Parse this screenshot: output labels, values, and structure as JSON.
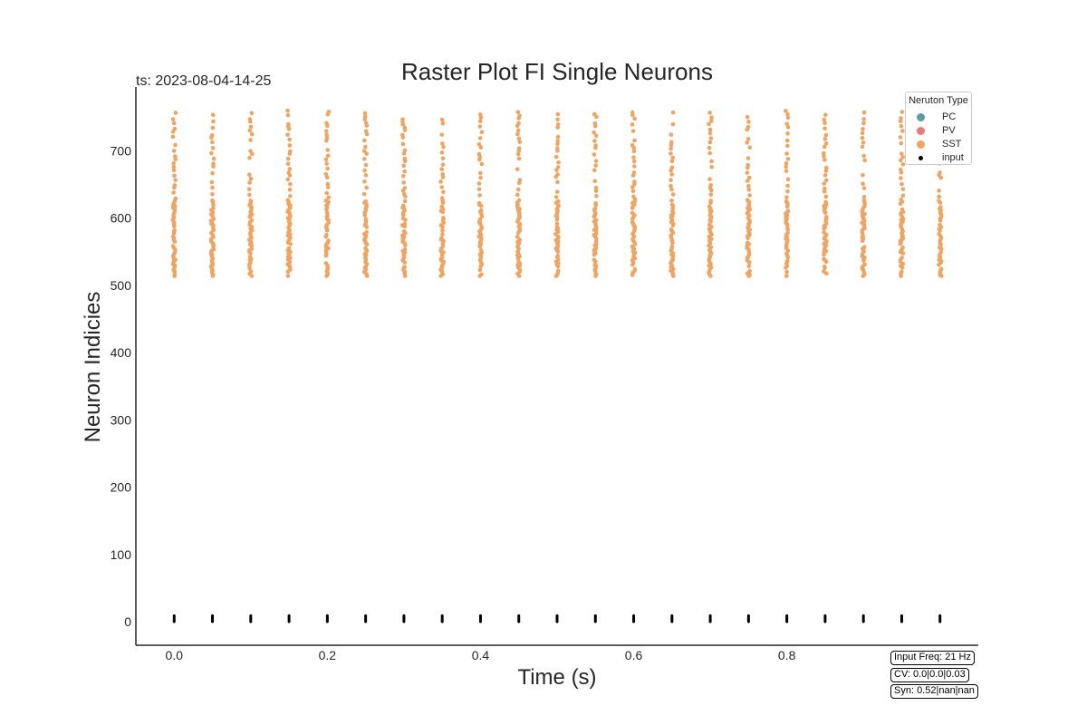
{
  "chart_data": {
    "type": "scatter",
    "title": "Raster Plot FI Single Neurons",
    "timestamp_label": "ts: 2023-08-04-14-25",
    "xlabel": "Time (s)",
    "ylabel": "Neuron Indicies",
    "xlim": [
      -0.05,
      1.05
    ],
    "ylim": [
      -35,
      795
    ],
    "xticks": [
      0.0,
      0.2,
      0.4,
      0.6,
      0.8
    ],
    "xtick_labels": [
      "0.0",
      "0.2",
      "0.4",
      "0.6",
      "0.8"
    ],
    "yticks": [
      0,
      100,
      200,
      300,
      400,
      500,
      600,
      700
    ],
    "ytick_labels": [
      "0",
      "100",
      "200",
      "300",
      "400",
      "500",
      "600",
      "700"
    ],
    "grid": false,
    "legend": {
      "title": "Neruton Type",
      "placement": "top-right",
      "entries": [
        {
          "label": "PC",
          "color": "#5f9aa0"
        },
        {
          "label": "PV",
          "color": "#e57b7b"
        },
        {
          "label": "SST",
          "color": "#f0a460"
        },
        {
          "label": "input",
          "color": "#000000"
        }
      ]
    },
    "series": [
      {
        "name": "SST",
        "color": "#f0a460",
        "spike_times": [
          0.0,
          0.05,
          0.1,
          0.15,
          0.2,
          0.25,
          0.3,
          0.35,
          0.4,
          0.45,
          0.5,
          0.55,
          0.6,
          0.65,
          0.7,
          0.75,
          0.8,
          0.85,
          0.9,
          0.95,
          1.0
        ],
        "neuron_range": [
          514,
          760
        ]
      },
      {
        "name": "input",
        "color": "#000000",
        "spike_times": [
          0.0,
          0.05,
          0.1,
          0.15,
          0.2,
          0.25,
          0.3,
          0.35,
          0.4,
          0.45,
          0.5,
          0.55,
          0.6,
          0.65,
          0.7,
          0.75,
          0.8,
          0.85,
          0.9,
          0.95,
          1.0
        ],
        "neuron_range": [
          0,
          9
        ]
      }
    ],
    "annotations": [
      "Input Freq: 21 Hz",
      "CV: 0.0|0.0|0.03",
      "Syn: 0.52|nan|nan"
    ]
  }
}
